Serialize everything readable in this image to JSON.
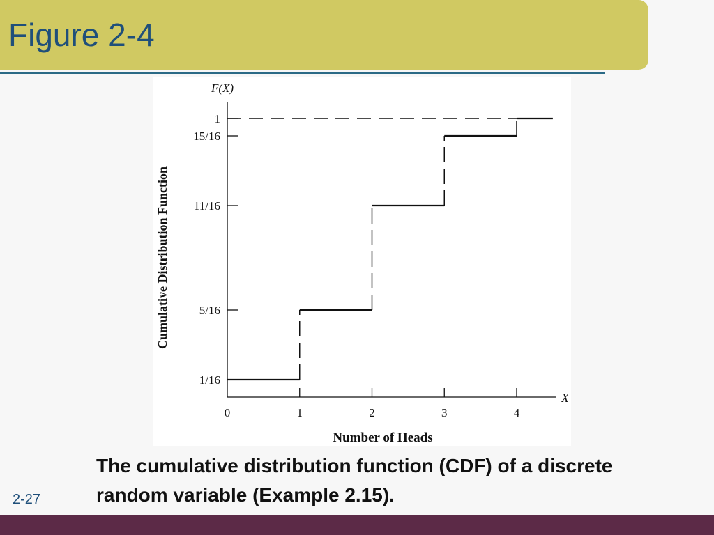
{
  "slide": {
    "title": "Figure 2-4",
    "caption": "The cumulative distribution function (CDF) of a discrete random variable (Example 2.15).",
    "slide_number": "2-27"
  },
  "colors": {
    "banner": "#d0c962",
    "title_text": "#1f4f7a",
    "rule": "#2b6a86",
    "footer": "#5c2a47",
    "text": "#111111"
  },
  "chart_data": {
    "type": "line",
    "step": true,
    "title": "",
    "ylabel": "Cumulative Distribution Function",
    "xlabel": "Number of Heads",
    "y_axis_name": "F(X)",
    "x_axis_name": "X",
    "xlim": [
      0,
      4.5
    ],
    "ylim": [
      0,
      1
    ],
    "x_ticks": [
      {
        "value": 0,
        "label": "0"
      },
      {
        "value": 1,
        "label": "1"
      },
      {
        "value": 2,
        "label": "2"
      },
      {
        "value": 3,
        "label": "3"
      },
      {
        "value": 4,
        "label": "4"
      }
    ],
    "y_ticks": [
      {
        "value": 0.0625,
        "label": "1/16"
      },
      {
        "value": 0.3125,
        "label": "5/16"
      },
      {
        "value": 0.6875,
        "label": "11/16"
      },
      {
        "value": 0.9375,
        "label": "15/16"
      },
      {
        "value": 1,
        "label": "1"
      }
    ],
    "reference_line": {
      "y": 1,
      "style": "dashed"
    },
    "steps": [
      {
        "x_start": 0,
        "x_end": 1,
        "y": 0.0625
      },
      {
        "x_start": 1,
        "x_end": 2,
        "y": 0.3125
      },
      {
        "x_start": 2,
        "x_end": 3,
        "y": 0.6875
      },
      {
        "x_start": 3,
        "x_end": 4,
        "y": 0.9375
      },
      {
        "x_start": 4,
        "x_end": 4.5,
        "y": 1
      }
    ],
    "grid": false
  }
}
